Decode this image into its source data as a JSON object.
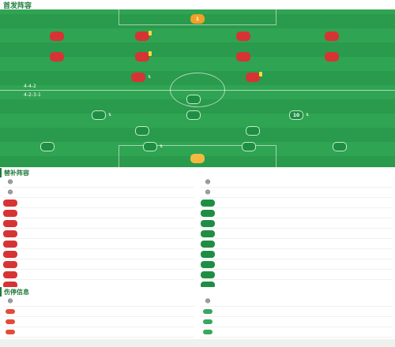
{
  "pitch": {
    "title": "首发阵容",
    "subtitle": "",
    "home_team": "",
    "away_team": "",
    "away_sub": "",
    "home_formation": "4-4-2",
    "away_formation": "4-2-3-1",
    "home_info": "",
    "away_info": "",
    "stadium": "",
    "players": [
      {
        "num": "1",
        "name": "",
        "rating": "",
        "kind": "gk-h"
      },
      {
        "num": "",
        "name": "",
        "rating": "",
        "kind": "red"
      },
      {
        "num": "",
        "name": "",
        "rating": "",
        "kind": "red"
      },
      {
        "num": "",
        "name": "",
        "rating": "",
        "kind": "red"
      },
      {
        "num": "",
        "name": "",
        "rating": "",
        "kind": "red"
      },
      {
        "num": "",
        "name": "",
        "rating": "",
        "kind": "red"
      },
      {
        "num": "",
        "name": "",
        "rating": "",
        "kind": "red"
      },
      {
        "num": "",
        "name": "",
        "rating": "",
        "kind": "red"
      },
      {
        "num": "",
        "name": "",
        "rating": "",
        "kind": "red"
      },
      {
        "num": "",
        "name": "",
        "rating": "",
        "kind": "red"
      },
      {
        "num": "",
        "name": "",
        "rating": "",
        "kind": "red"
      },
      {
        "num": "",
        "name": "",
        "rating": "",
        "kind": "green"
      },
      {
        "num": "",
        "name": "",
        "rating": "",
        "kind": "green"
      },
      {
        "num": "",
        "name": "",
        "rating": "",
        "kind": "green"
      },
      {
        "num": "10",
        "name": "",
        "rating": "",
        "kind": "green"
      },
      {
        "num": "",
        "name": "",
        "rating": "",
        "kind": "green"
      },
      {
        "num": "",
        "name": "",
        "rating": "",
        "kind": "green"
      },
      {
        "num": "",
        "name": "",
        "rating": "",
        "kind": "green"
      },
      {
        "num": "",
        "name": "",
        "rating": "",
        "kind": "green"
      },
      {
        "num": "",
        "name": "",
        "rating": "",
        "kind": "green"
      },
      {
        "num": "",
        "name": "",
        "rating": "",
        "kind": "green"
      },
      {
        "num": "",
        "name": "",
        "rating": "",
        "kind": "gk-a"
      }
    ]
  },
  "subs": {
    "title": "替补阵容",
    "home": [
      {
        "badge": "",
        "name": "",
        "pos": "",
        "coach": true,
        "right": ""
      },
      {
        "badge": "",
        "name": "",
        "pos": "",
        "tag": "",
        "right": ""
      },
      {
        "badge": "",
        "name": "",
        "pos": "",
        "tag": "",
        "right": ""
      },
      {
        "badge": "",
        "name": "",
        "pos": "",
        "tag": "",
        "right": ""
      },
      {
        "badge": "",
        "name": "",
        "pos": "",
        "tag": "",
        "right": ""
      },
      {
        "badge": "",
        "name": "",
        "pos": "",
        "tag": "",
        "right": ""
      },
      {
        "badge": "",
        "name": "",
        "pos": "",
        "tag": "",
        "right": ""
      },
      {
        "badge": "",
        "name": "",
        "pos": "",
        "tag": "",
        "right": ""
      },
      {
        "badge": "",
        "name": "",
        "pos": "",
        "tag": "",
        "right": ""
      },
      {
        "badge": "",
        "name": "",
        "pos": "",
        "tag": "",
        "right": ""
      },
      {
        "badge": "",
        "name": "",
        "pos": "",
        "tag": "",
        "right": ""
      }
    ],
    "away": [
      {
        "badge": "",
        "name": "",
        "pos": "",
        "coach": true,
        "right": ""
      },
      {
        "badge": "",
        "name": "",
        "pos": "",
        "tag": "",
        "right": ""
      },
      {
        "badge": "",
        "name": "",
        "pos": "",
        "tag": "",
        "right": ""
      },
      {
        "badge": "",
        "name": "",
        "pos": "",
        "tag": "",
        "right": ""
      },
      {
        "badge": "",
        "name": "",
        "pos": "",
        "tag": "",
        "right": ""
      },
      {
        "badge": "",
        "name": "",
        "pos": "",
        "tag": "",
        "right": ""
      },
      {
        "badge": "",
        "name": "",
        "pos": "",
        "tag": "",
        "right": ""
      },
      {
        "badge": "",
        "name": "",
        "pos": "",
        "tag": "",
        "right": ""
      },
      {
        "badge": "",
        "name": "",
        "pos": "",
        "tag": "",
        "right": ""
      },
      {
        "badge": "",
        "name": "",
        "pos": "",
        "tag": "",
        "right": ""
      },
      {
        "badge": "",
        "name": "",
        "pos": "",
        "tag": "",
        "right": ""
      }
    ]
  },
  "injuries": {
    "title": "伤停信息",
    "home": [
      {
        "name": "",
        "note": "",
        "coach": true
      },
      {
        "name": "",
        "note": ""
      },
      {
        "name": "",
        "note": ""
      },
      {
        "name": "",
        "note": ""
      },
      {
        "name": "",
        "note": ""
      }
    ],
    "away": [
      {
        "name": "",
        "note": "",
        "coach": true
      },
      {
        "name": "",
        "note": ""
      },
      {
        "name": "",
        "note": ""
      },
      {
        "name": "",
        "note": ""
      },
      {
        "name": "",
        "note": ""
      }
    ]
  },
  "colors": {
    "home": "#d63434",
    "away": "#1f8e44",
    "pitch": "#2fa452"
  }
}
